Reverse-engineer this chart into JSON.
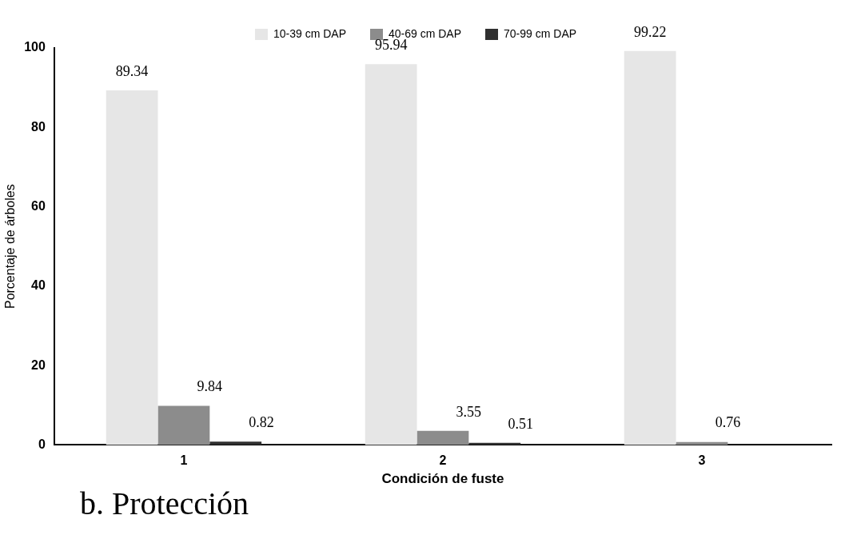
{
  "chart_data": {
    "type": "bar",
    "xlabel": "Condición de fuste",
    "ylabel": "Porcentaje de árboles",
    "categories": [
      "1",
      "2",
      "3"
    ],
    "series": [
      {
        "name": "10-39 cm DAP",
        "color": "#e6e6e6",
        "values": [
          89.34,
          95.94,
          99.22
        ]
      },
      {
        "name": "40-69 cm DAP",
        "color": "#8c8c8c",
        "values": [
          9.84,
          3.55,
          0.76
        ]
      },
      {
        "name": "70-99 cm DAP",
        "color": "#303030",
        "values": [
          0.82,
          0.51,
          null
        ]
      }
    ],
    "ylim": [
      0,
      100
    ],
    "yticks": [
      0,
      20,
      40,
      60,
      80,
      100
    ],
    "grid": false,
    "legend": "top",
    "data_labels": true,
    "annotations": [
      "b. Protección"
    ]
  }
}
